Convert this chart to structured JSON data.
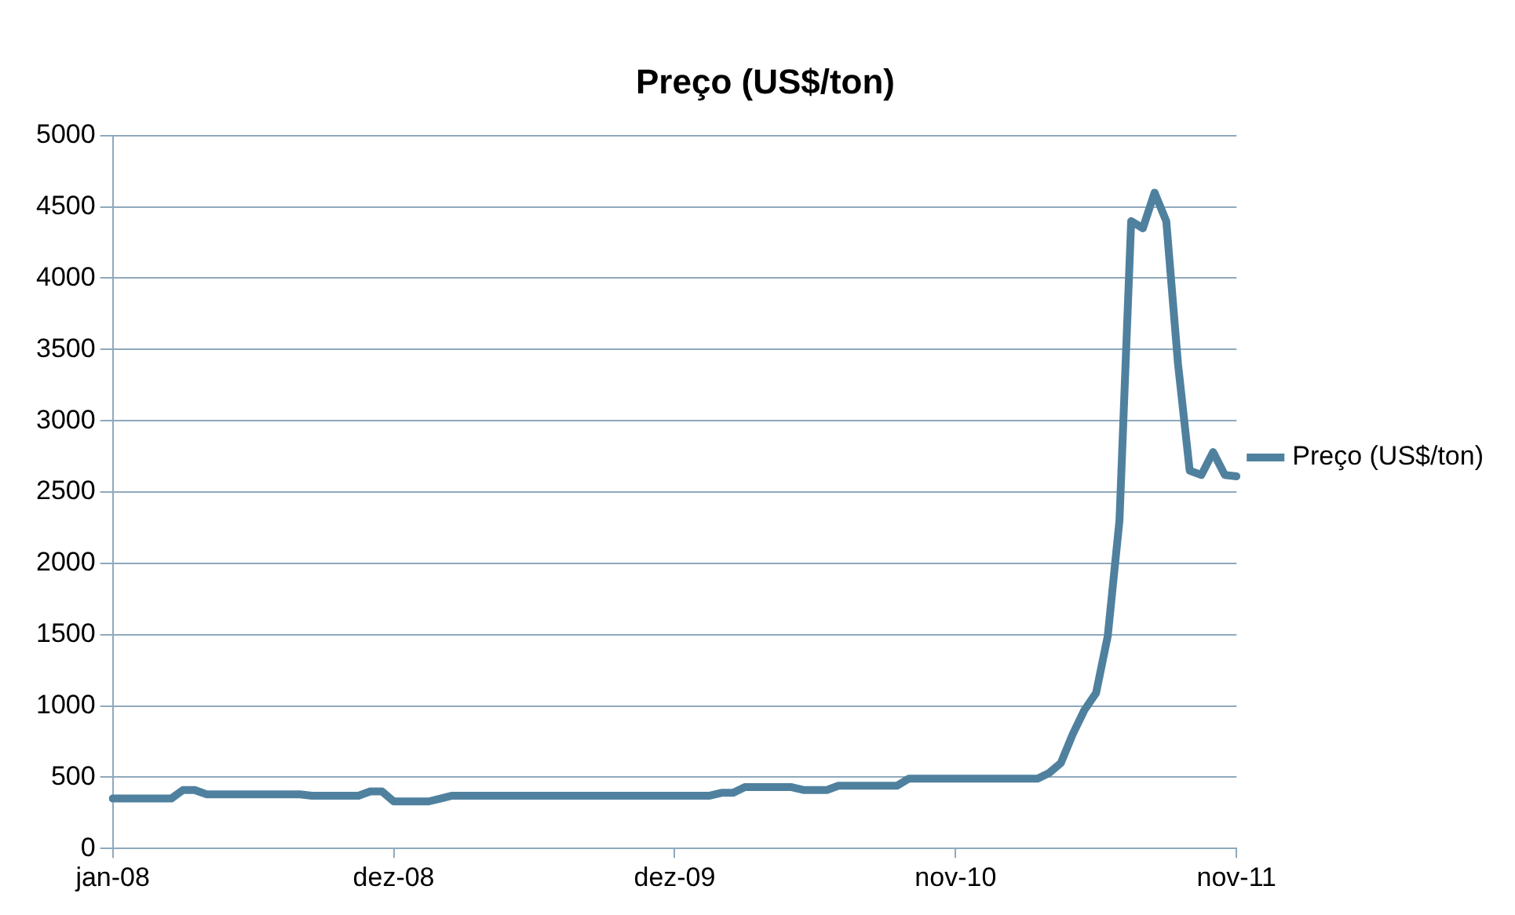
{
  "chart_data": {
    "type": "line",
    "title": "Preço (US$/ton)",
    "categories": [
      "jan-08",
      null,
      null,
      null,
      null,
      null,
      null,
      null,
      null,
      null,
      null,
      null,
      null,
      null,
      null,
      null,
      null,
      null,
      null,
      null,
      null,
      null,
      null,
      null,
      "dez-08",
      null,
      null,
      null,
      null,
      null,
      null,
      null,
      null,
      null,
      null,
      null,
      null,
      null,
      null,
      null,
      null,
      null,
      null,
      null,
      null,
      null,
      null,
      null,
      "dez-09",
      null,
      null,
      null,
      null,
      null,
      null,
      null,
      null,
      null,
      null,
      null,
      null,
      null,
      null,
      null,
      null,
      null,
      null,
      null,
      null,
      null,
      null,
      null,
      "nov-10",
      null,
      null,
      null,
      null,
      null,
      null,
      null,
      null,
      null,
      null,
      null,
      null,
      null,
      null,
      null,
      null,
      null,
      null,
      null,
      null,
      null,
      null,
      null,
      "nov-11"
    ],
    "series": [
      {
        "name": "Preço (US$/ton)",
        "color": "#4f819f",
        "values": [
          350,
          350,
          350,
          350,
          350,
          350,
          410,
          410,
          380,
          380,
          380,
          380,
          380,
          380,
          380,
          380,
          380,
          370,
          370,
          370,
          370,
          370,
          400,
          400,
          330,
          330,
          330,
          330,
          350,
          370,
          370,
          370,
          370,
          370,
          370,
          370,
          370,
          370,
          370,
          370,
          370,
          370,
          370,
          370,
          370,
          370,
          370,
          370,
          370,
          370,
          370,
          370,
          390,
          390,
          430,
          430,
          430,
          430,
          430,
          410,
          410,
          410,
          440,
          440,
          440,
          440,
          440,
          440,
          490,
          490,
          490,
          490,
          490,
          490,
          490,
          490,
          490,
          490,
          490,
          490,
          530,
          600,
          800,
          970,
          1090,
          1490,
          2300,
          4400,
          4350,
          4600,
          4400,
          3400,
          2650,
          2620,
          2780,
          2620,
          2610
        ]
      }
    ],
    "ylim": [
      0,
      5000
    ],
    "yticks": [
      0,
      500,
      1000,
      1500,
      2000,
      2500,
      3000,
      3500,
      4000,
      4500,
      5000
    ],
    "grid": "y",
    "legend": "right",
    "marker": "none",
    "line_style": "solid"
  }
}
